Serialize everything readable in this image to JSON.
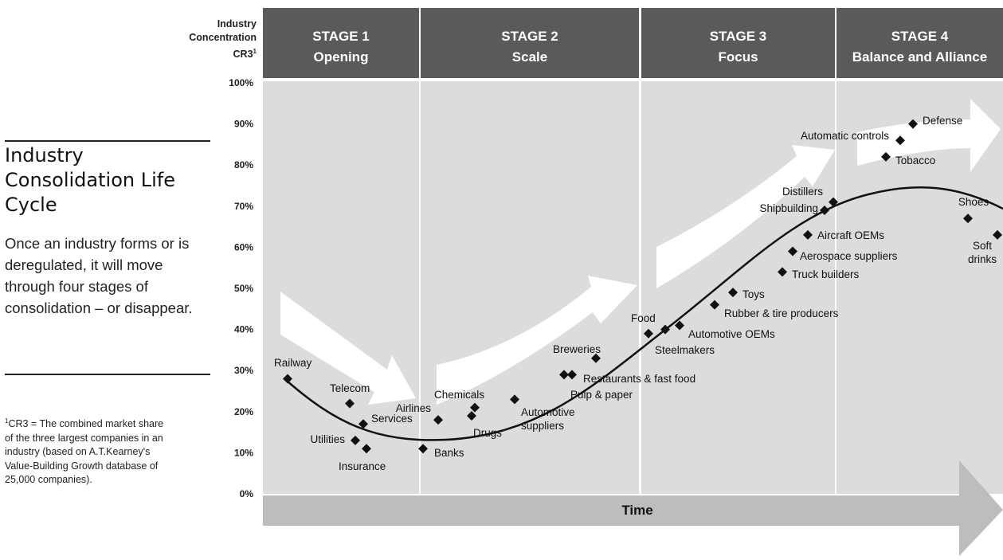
{
  "sidebar": {
    "title": "Industry Consolidation Life Cycle",
    "description": "Once an industry forms or is deregulated, it will move through four stages of consolidation – or disappear.",
    "footnote_marker": "1",
    "footnote": "CR3 = The combined market share of the three largest companies in an industry (based on A.T.Kearney's Value-Building Growth database of 25,000 companies)."
  },
  "chart_data": {
    "type": "scatter",
    "ylabel_lines": [
      "Industry",
      "Concentration",
      "CR3"
    ],
    "ylabel_sup": "1",
    "xlabel": "Time",
    "ylim": [
      0,
      100
    ],
    "yticks": [
      "0%",
      "10%",
      "20%",
      "30%",
      "40%",
      "50%",
      "60%",
      "70%",
      "80%",
      "90%",
      "100%"
    ],
    "stages": [
      {
        "name": "STAGE 1",
        "subtitle": "Opening"
      },
      {
        "name": "STAGE 2",
        "subtitle": "Scale"
      },
      {
        "name": "STAGE 3",
        "subtitle": "Focus"
      },
      {
        "name": "STAGE 4",
        "subtitle": "Balance and Alliance"
      }
    ],
    "points": [
      {
        "label": "Railway",
        "y": 28
      },
      {
        "label": "Telecom",
        "y": 22
      },
      {
        "label": "Services",
        "y": 17
      },
      {
        "label": "Utilities",
        "y": 13
      },
      {
        "label": "Insurance",
        "y": 11
      },
      {
        "label": "Banks",
        "y": 11
      },
      {
        "label": "Airlines",
        "y": 18
      },
      {
        "label": "Chemicals",
        "y": 21
      },
      {
        "label": "Drugs",
        "y": 19
      },
      {
        "label": "Automotive suppliers",
        "y": 23
      },
      {
        "label": "Pulp & paper",
        "y": 29
      },
      {
        "label": "Restaurants & fast food",
        "y": 29
      },
      {
        "label": "Breweries",
        "y": 33
      },
      {
        "label": "Food",
        "y": 39
      },
      {
        "label": "Steelmakers",
        "y": 40
      },
      {
        "label": "Automotive OEMs",
        "y": 41
      },
      {
        "label": "Rubber & tire producers",
        "y": 46
      },
      {
        "label": "Toys",
        "y": 49
      },
      {
        "label": "Truck builders",
        "y": 54
      },
      {
        "label": "Aerospace suppliers",
        "y": 59
      },
      {
        "label": "Aircraft OEMs",
        "y": 63
      },
      {
        "label": "Shipbuilding",
        "y": 69
      },
      {
        "label": "Distillers",
        "y": 71
      },
      {
        "label": "Tobacco",
        "y": 82
      },
      {
        "label": "Automatic controls",
        "y": 86
      },
      {
        "label": "Defense",
        "y": 90
      },
      {
        "label": "Shoes",
        "y": 67
      },
      {
        "label": "Soft drinks",
        "y": 63
      }
    ],
    "curve_label": "",
    "colors": {
      "header": "#5a5a5a",
      "panel": "#dcdcdc",
      "arrow": "#ffffff",
      "marker": "#111111"
    }
  }
}
